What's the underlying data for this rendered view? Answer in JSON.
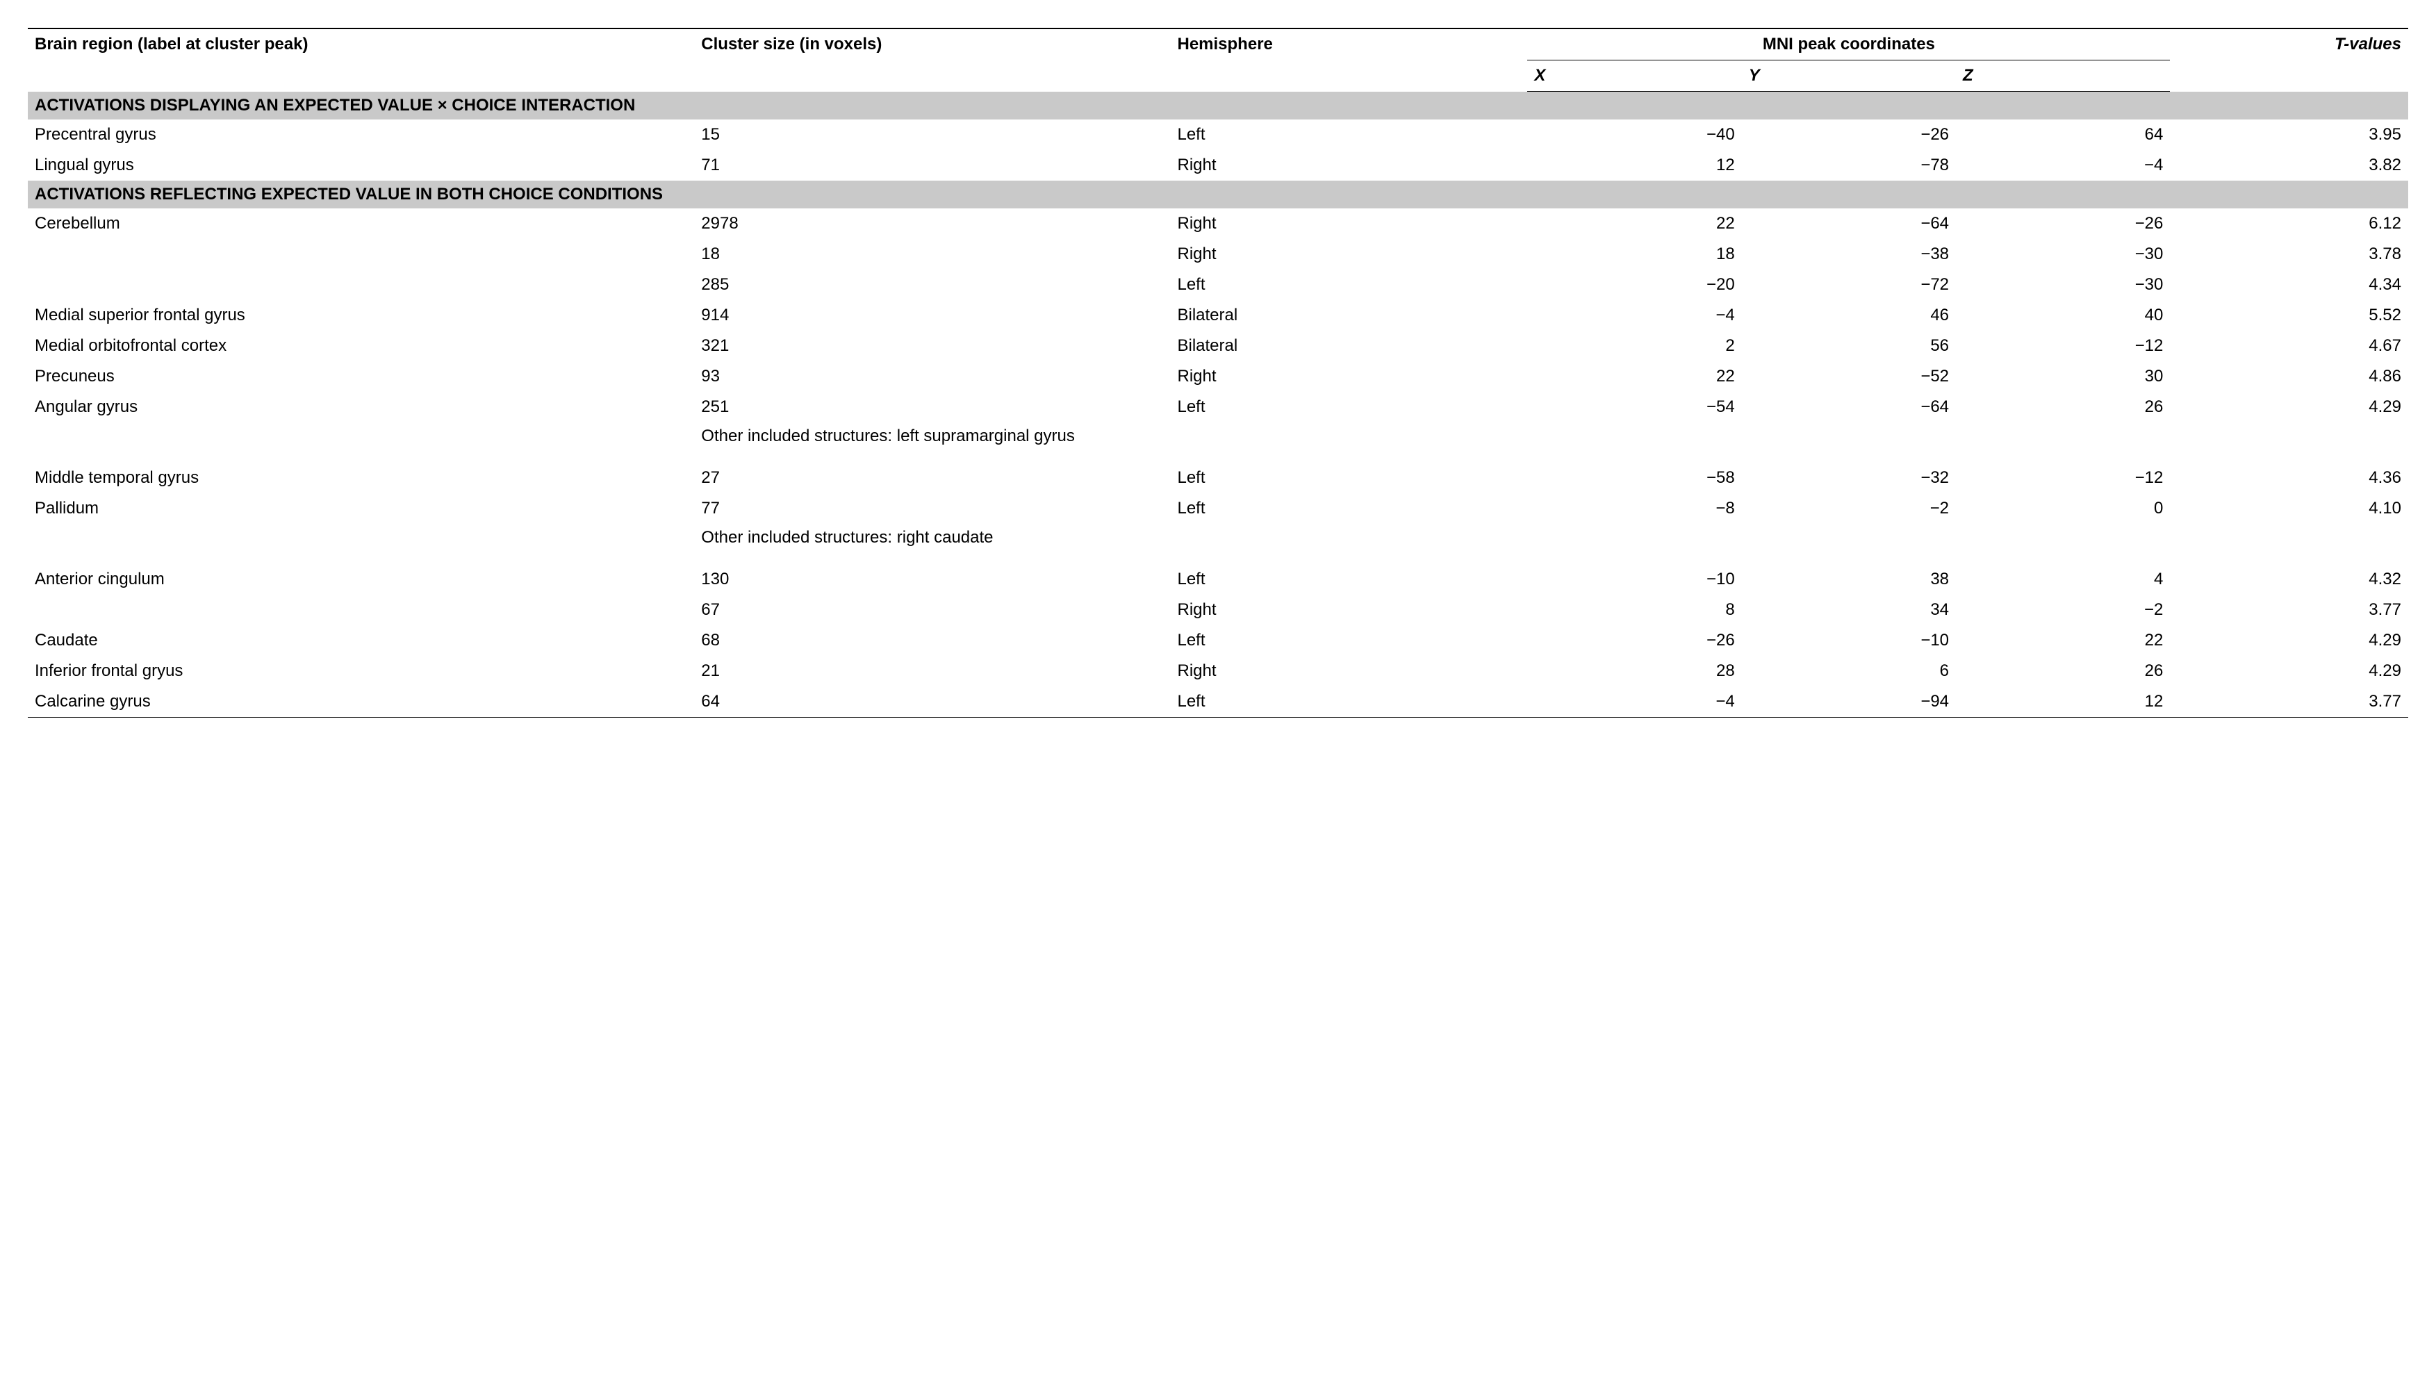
{
  "colors": {
    "header_bg": "#c9c9c9",
    "text": "#000000",
    "rule": "#000000",
    "background": "#ffffff"
  },
  "typography": {
    "font_family": "Helvetica Neue, Helvetica, Arial, sans-serif",
    "body_fontsize_pt": 18,
    "header_weight": 700
  },
  "headers": {
    "region": "Brain region (label at cluster peak)",
    "cluster": "Cluster size (in voxels)",
    "hemisphere": "Hemisphere",
    "mni": "MNI peak coordinates",
    "x": "X",
    "y": "Y",
    "z": "Z",
    "tvalues": "T-values"
  },
  "sections": [
    {
      "title": "ACTIVATIONS DISPLAYING AN EXPECTED VALUE × CHOICE INTERACTION",
      "rows": [
        {
          "region": "Precentral gyrus",
          "cluster": "15",
          "hemisphere": "Left",
          "x": "−40",
          "y": "−26",
          "z": "64",
          "t": "3.95"
        },
        {
          "region": "Lingual gyrus",
          "cluster": "71",
          "hemisphere": "Right",
          "x": "12",
          "y": "−78",
          "z": "−4",
          "t": "3.82"
        }
      ]
    },
    {
      "title": "ACTIVATIONS REFLECTING EXPECTED VALUE IN BOTH CHOICE CONDITIONS",
      "rows": [
        {
          "region": "Cerebellum",
          "cluster": "2978",
          "hemisphere": "Right",
          "x": "22",
          "y": "−64",
          "z": "−26",
          "t": "6.12"
        },
        {
          "region": "",
          "cluster": "18",
          "hemisphere": "Right",
          "x": "18",
          "y": "−38",
          "z": "−30",
          "t": "3.78"
        },
        {
          "region": "",
          "cluster": "285",
          "hemisphere": "Left",
          "x": "−20",
          "y": "−72",
          "z": "−30",
          "t": "4.34"
        },
        {
          "region": "Medial superior frontal gyrus",
          "cluster": "914",
          "hemisphere": "Bilateral",
          "x": "−4",
          "y": "46",
          "z": "40",
          "t": "5.52"
        },
        {
          "region": "Medial orbitofrontal cortex",
          "cluster": "321",
          "hemisphere": "Bilateral",
          "x": "2",
          "y": "56",
          "z": "−12",
          "t": "4.67"
        },
        {
          "region": "Precuneus",
          "cluster": "93",
          "hemisphere": "Right",
          "x": "22",
          "y": "−52",
          "z": "30",
          "t": "4.86"
        },
        {
          "region": "Angular gyrus",
          "cluster": "251",
          "hemisphere": "Left",
          "x": "−54",
          "y": "−64",
          "z": "26",
          "t": "4.29"
        },
        {
          "note": "Other included structures: left supramarginal gyrus"
        },
        {
          "region": "Middle temporal gyrus",
          "cluster": "27",
          "hemisphere": "Left",
          "x": "−58",
          "y": "−32",
          "z": "−12",
          "t": "4.36"
        },
        {
          "region": "Pallidum",
          "cluster": "77",
          "hemisphere": "Left",
          "x": "−8",
          "y": "−2",
          "z": "0",
          "t": "4.10"
        },
        {
          "note": "Other included structures: right caudate"
        },
        {
          "region": "Anterior cingulum",
          "cluster": "130",
          "hemisphere": "Left",
          "x": "−10",
          "y": "38",
          "z": "4",
          "t": "4.32"
        },
        {
          "region": "",
          "cluster": "67",
          "hemisphere": "Right",
          "x": "8",
          "y": "34",
          "z": "−2",
          "t": "3.77"
        },
        {
          "region": "Caudate",
          "cluster": "68",
          "hemisphere": "Left",
          "x": "−26",
          "y": "−10",
          "z": "22",
          "t": "4.29"
        },
        {
          "region": "Inferior frontal gryus",
          "cluster": "21",
          "hemisphere": "Right",
          "x": "28",
          "y": "6",
          "z": "26",
          "t": "4.29"
        },
        {
          "region": "Calcarine gyrus",
          "cluster": "64",
          "hemisphere": "Left",
          "x": "−4",
          "y": "−94",
          "z": "12",
          "t": "3.77"
        }
      ]
    }
  ]
}
